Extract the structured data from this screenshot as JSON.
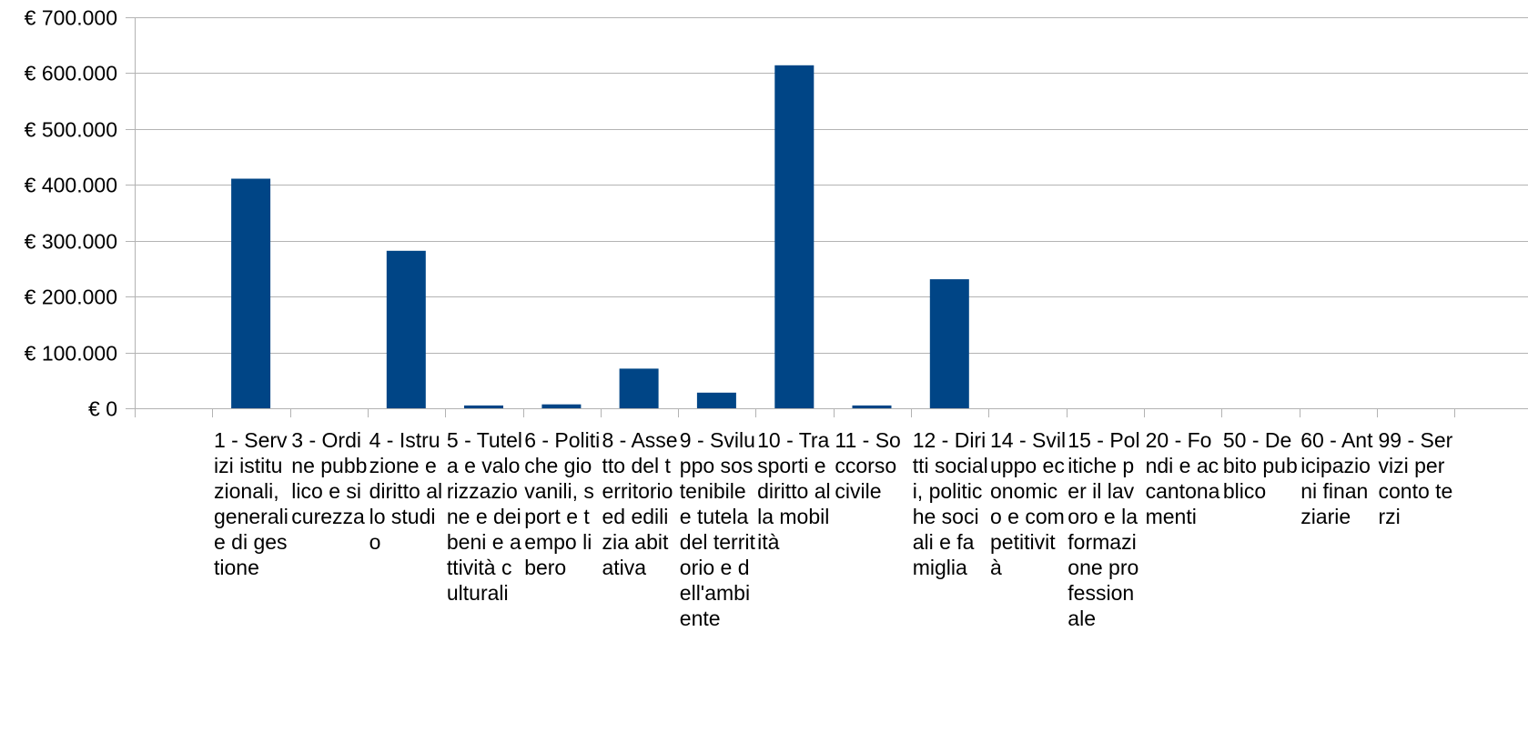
{
  "chart_data": {
    "type": "bar",
    "categories": [
      "1 - Servizi istituzionali, generali e di gestione",
      "3 - Ordine pubblico e sicurezza",
      "4 - Istruzione e diritto allo studio",
      "5 - Tutela e valorizzazione e dei beni e attività culturali",
      "6 - Politiche giovanili, sport e tempo libero",
      "8 - Assetto del territorio ed edilizia abitativa",
      "9 - Sviluppo sostenibile e tutela del territorio e dell'ambiente",
      "10 - Trasporti e diritto alla mobilità",
      "11 - Soccorso civile",
      "12 - Diritti sociali, politiche sociali e famiglia",
      "14 - Sviluppo economico e competitività",
      "15 - Politiche per il lavoro e la formazione professionale",
      "20 - Fondi e accantonamenti",
      "50 - Debito pubblico",
      "60 - Anticipazioni finanziarie",
      "99 - Servizi per conto terzi"
    ],
    "values": [
      411000,
      0,
      282000,
      5000,
      7000,
      71000,
      28000,
      614000,
      5000,
      231000,
      0,
      0,
      0,
      0,
      0,
      0
    ],
    "title": "",
    "xlabel": "",
    "ylabel": "",
    "ylim": [
      0,
      700000
    ],
    "yticks": [
      0,
      100000,
      200000,
      300000,
      400000,
      500000,
      600000,
      700000
    ],
    "ytick_labels": [
      "€ 0",
      "€ 100.000",
      "€ 200.000",
      "€ 300.000",
      "€ 400.000",
      "€ 500.000",
      "€ 600.000",
      "€ 700.000"
    ],
    "grid": true,
    "legend": "none",
    "bar_color": "#004586",
    "grid_color": "#b3b3b3"
  }
}
